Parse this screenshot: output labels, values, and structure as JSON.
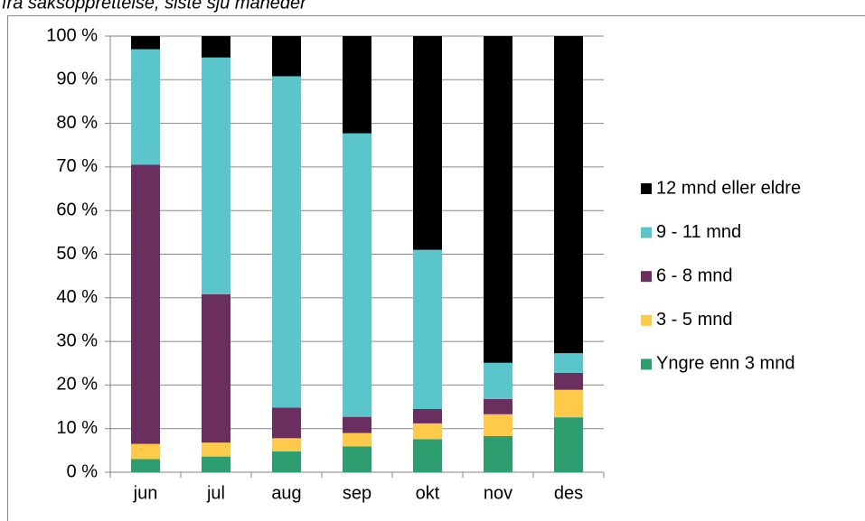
{
  "chart_data": {
    "type": "stacked_bar",
    "title": "fra saksopprettelse, siste sju måneder",
    "categories": [
      "jun",
      "jul",
      "aug",
      "sep",
      "okt",
      "nov",
      "des"
    ],
    "series": [
      {
        "name": "Yngre enn 3 mnd",
        "color": "#2e9e70",
        "values": [
          3,
          3.6,
          4.8,
          5.9,
          7.6,
          8.3,
          12.6
        ]
      },
      {
        "name": "3 - 5 mnd",
        "color": "#ffc94a",
        "values": [
          3.5,
          3.2,
          3,
          3.1,
          3.6,
          5,
          6.3
        ]
      },
      {
        "name": "6 - 8 mnd",
        "color": "#6a2f5e",
        "values": [
          64,
          34,
          7,
          3.7,
          3.3,
          3.5,
          3.9
        ]
      },
      {
        "name": "9 - 11 mnd",
        "color": "#5bc5cc",
        "values": [
          26.5,
          54.3,
          76,
          65,
          36.5,
          8.3,
          4.5
        ]
      },
      {
        "name": "12 mnd eller eldre",
        "color": "#000000",
        "values": [
          3,
          4.9,
          9.2,
          22.3,
          49,
          74.9,
          72.7
        ]
      }
    ],
    "ylim": [
      0,
      100
    ],
    "yticks": [
      {
        "value": 0,
        "label": "0 %"
      },
      {
        "value": 10,
        "label": "10 %"
      },
      {
        "value": 20,
        "label": "20 %"
      },
      {
        "value": 30,
        "label": "30 %"
      },
      {
        "value": 40,
        "label": "40 %"
      },
      {
        "value": 50,
        "label": "50 %"
      },
      {
        "value": 60,
        "label": "60 %"
      },
      {
        "value": 70,
        "label": "70 %"
      },
      {
        "value": 80,
        "label": "80 %"
      },
      {
        "value": 90,
        "label": "90 %"
      },
      {
        "value": 100,
        "label": "100 %"
      }
    ],
    "grid": true,
    "legend": "right"
  }
}
